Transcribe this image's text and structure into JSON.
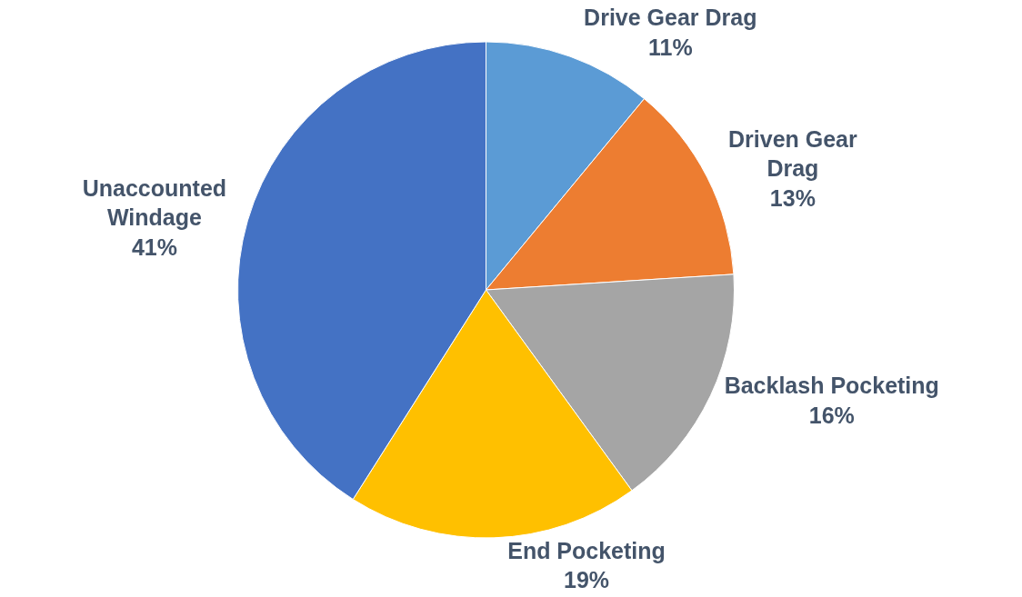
{
  "chart_data": {
    "type": "pie",
    "categories": [
      "Drive Gear Drag",
      "Driven Gear\nDrag",
      "Backlash Pocketing",
      "End Pocketing",
      "Unaccounted\nWindage"
    ],
    "values": [
      11,
      13,
      16,
      19,
      41
    ],
    "value_labels": [
      "11%",
      "13%",
      "16%",
      "19%",
      "41%"
    ],
    "colors": [
      "#5b9bd5",
      "#ed7d31",
      "#a5a5a5",
      "#ffc000",
      "#4472c4"
    ],
    "legend": false
  }
}
